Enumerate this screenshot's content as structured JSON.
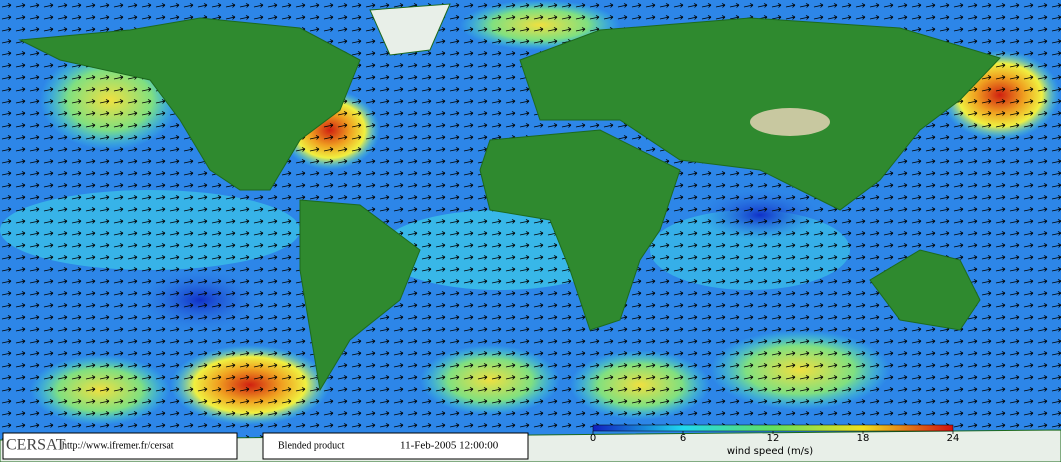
{
  "logo": "CERSAT",
  "url": "http://www.ifremer.fr/cersat",
  "product": "Blended product",
  "date": "11-Feb-2005 12:00:00",
  "colorbar": {
    "label": "wind speed (m/s)",
    "lim": [
      0,
      24
    ],
    "ticks": [
      0,
      6,
      12,
      18,
      24
    ]
  }
}
